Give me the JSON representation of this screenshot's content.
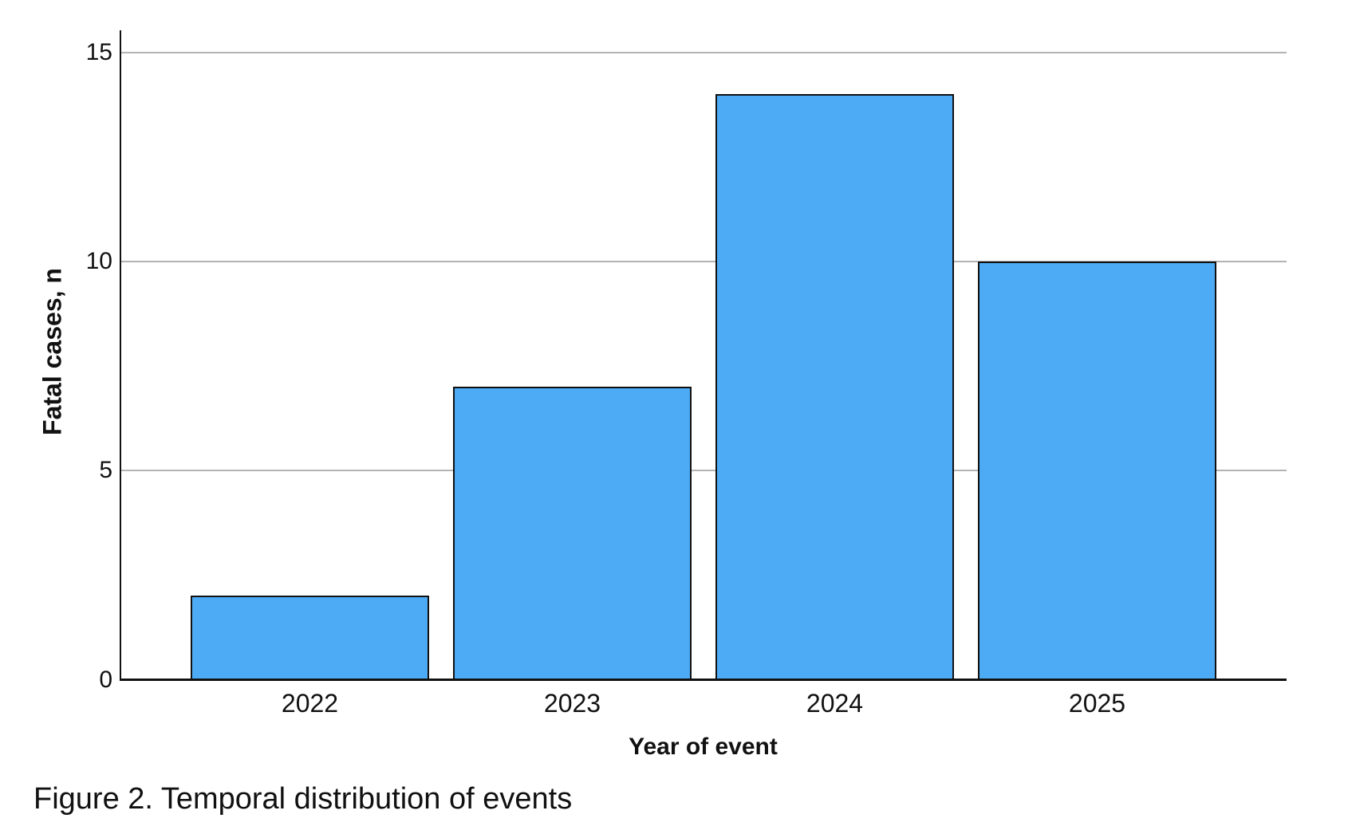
{
  "caption": "Figure 2. Temporal distribution of events",
  "chart_data": {
    "type": "bar",
    "categories": [
      "2022",
      "2023",
      "2024",
      "2025"
    ],
    "values": [
      2,
      7,
      14,
      10
    ],
    "title": "",
    "xlabel": "Year of event",
    "ylabel": "Fatal cases, n",
    "ylim": [
      0,
      15.5
    ],
    "y_ticks": [
      0,
      5,
      10,
      15
    ],
    "grid": true,
    "legend_position": "none",
    "colors": {
      "bar_fill": "#4dabf5",
      "bar_border": "#111111",
      "gridline": "#b3b3b3",
      "axis": "#111111",
      "text": "#111111"
    }
  }
}
